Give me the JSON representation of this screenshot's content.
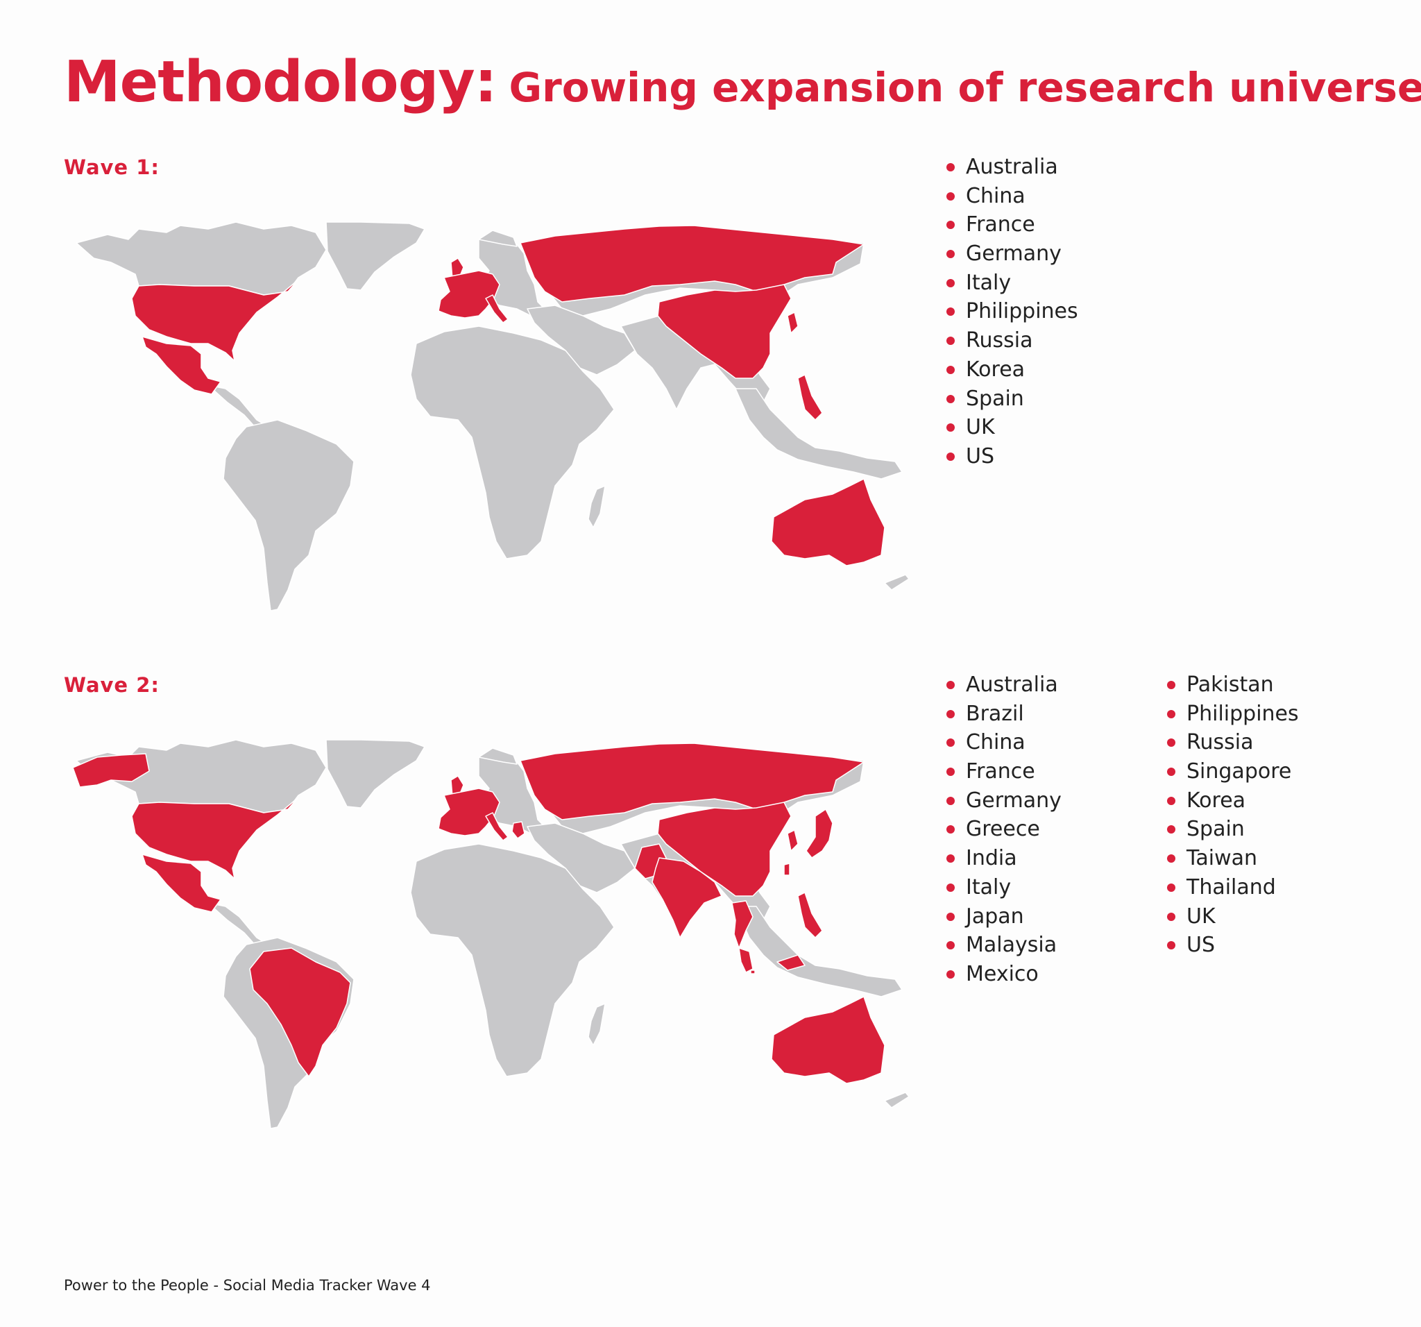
{
  "title": {
    "bold": "Methodology:",
    "rest": "Growing expansion of research universe"
  },
  "colors": {
    "accent": "#d9203a",
    "land": "#c8c8ca",
    "background": "#fdfdfd"
  },
  "waves": [
    {
      "label": "Wave 1:",
      "countries_col1": [
        "Australia",
        "China",
        "France",
        "Germany",
        "Italy",
        "Philippines",
        "Russia",
        "Korea",
        "Spain",
        "UK",
        "US"
      ],
      "countries_col2": []
    },
    {
      "label": "Wave 2:",
      "countries_col1": [
        "Australia",
        "Brazil",
        "China",
        "France",
        "Germany",
        "Greece",
        "India",
        "Italy",
        "Japan",
        "Malaysia",
        "Mexico"
      ],
      "countries_col2": [
        "Pakistan",
        "Philippines",
        "Russia",
        "Singapore",
        "Korea",
        "Spain",
        "Taiwan",
        "Thailand",
        "UK",
        "US"
      ]
    }
  ],
  "footer": "Power to the People - Social Media Tracker Wave 4"
}
